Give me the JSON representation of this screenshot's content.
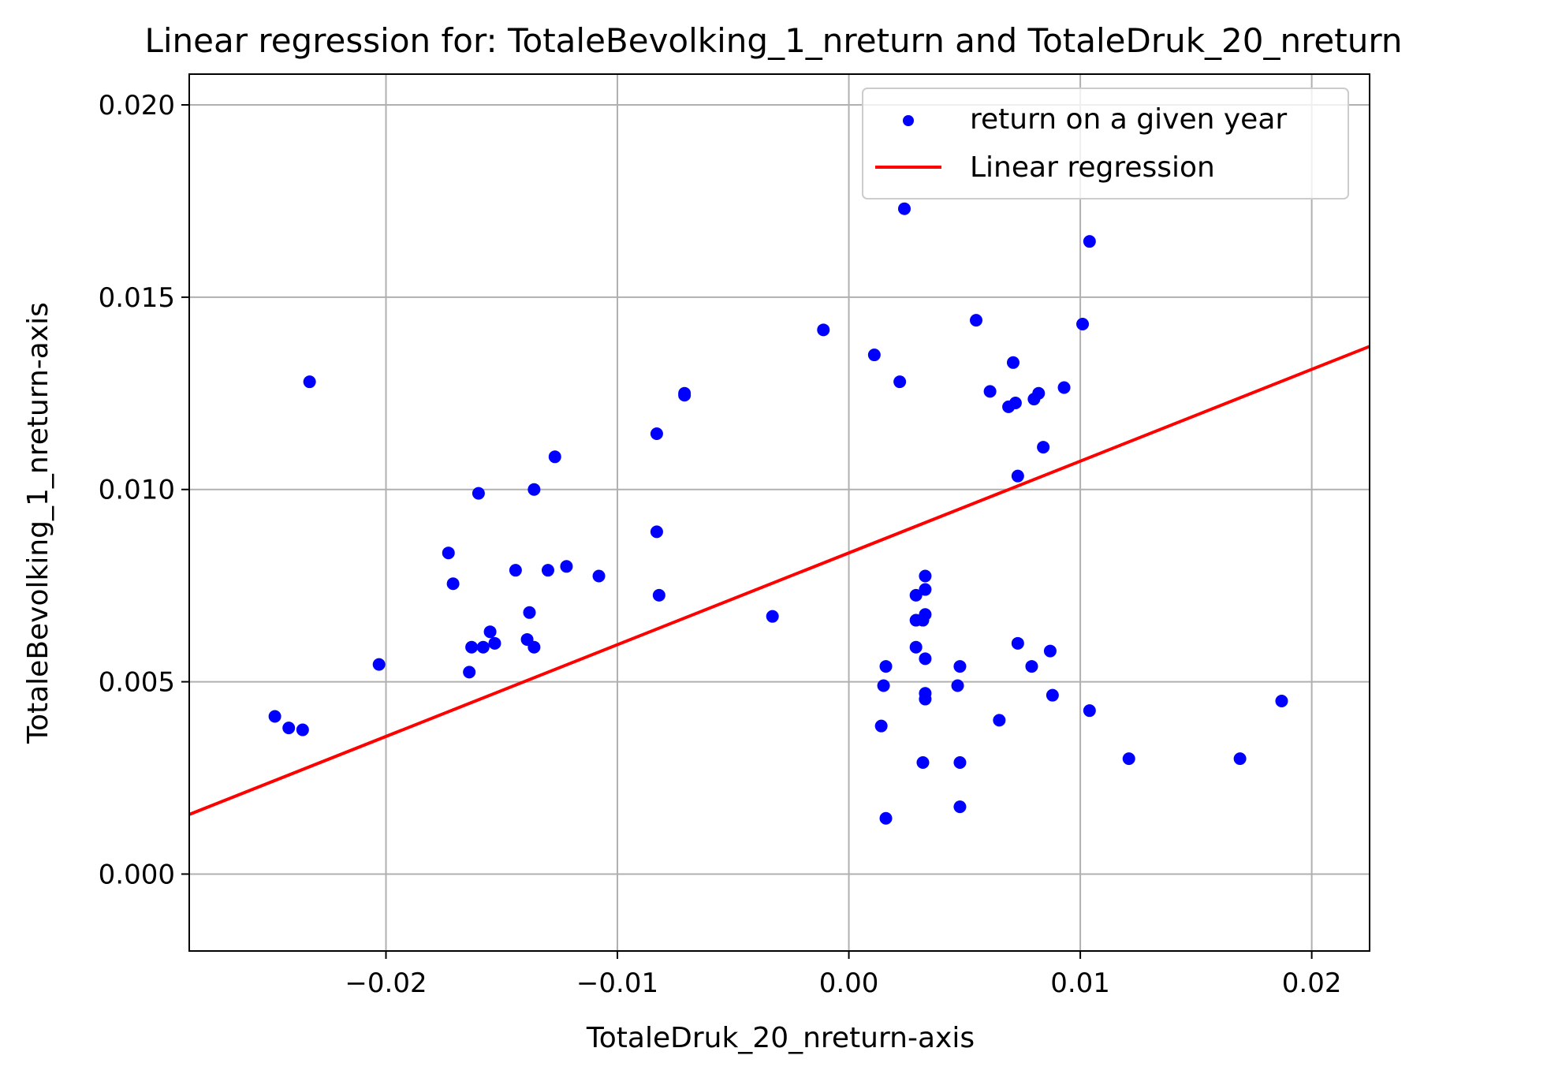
{
  "chart_data": {
    "type": "scatter",
    "title": "Linear regression for: TotaleBevolking_1_nreturn and TotaleDruk_20_nreturn",
    "xlabel": "TotaleDruk_20_nreturn-axis",
    "ylabel": "TotaleBevolking_1_nreturn-axis",
    "xlim": [
      -0.0285,
      0.0225
    ],
    "ylim": [
      -0.002,
      0.0208
    ],
    "x_ticks": [
      -0.02,
      -0.01,
      0.0,
      0.01,
      0.02
    ],
    "x_tick_labels": [
      "−0.02",
      "−0.01",
      "0.00",
      "0.01",
      "0.02"
    ],
    "y_ticks": [
      0.0,
      0.005,
      0.01,
      0.015,
      0.02
    ],
    "y_tick_labels": [
      "0.000",
      "0.005",
      "0.010",
      "0.015",
      "0.020"
    ],
    "grid": true,
    "legend": {
      "placement": "upper-right",
      "entries": [
        {
          "label": "return on a given year",
          "kind": "marker",
          "color": "#0000ff"
        },
        {
          "label": "Linear regression",
          "kind": "line",
          "color": "#ff0000"
        }
      ]
    },
    "series": [
      {
        "name": "return on a given year",
        "kind": "scatter",
        "color": "#0000ff",
        "points": [
          [
            -0.0248,
            0.0041
          ],
          [
            -0.0242,
            0.0038
          ],
          [
            -0.0236,
            0.00375
          ],
          [
            -0.0233,
            0.0128
          ],
          [
            -0.0203,
            0.00545
          ],
          [
            -0.0173,
            0.00835
          ],
          [
            -0.0171,
            0.00755
          ],
          [
            -0.0164,
            0.00525
          ],
          [
            -0.0163,
            0.0059
          ],
          [
            -0.016,
            0.0099
          ],
          [
            -0.0158,
            0.0059
          ],
          [
            -0.0155,
            0.0063
          ],
          [
            -0.0153,
            0.006
          ],
          [
            -0.0144,
            0.0079
          ],
          [
            -0.0139,
            0.0061
          ],
          [
            -0.0138,
            0.0068
          ],
          [
            -0.0136,
            0.0059
          ],
          [
            -0.0136,
            0.01
          ],
          [
            -0.013,
            0.0079
          ],
          [
            -0.0127,
            0.01085
          ],
          [
            -0.0122,
            0.008
          ],
          [
            -0.0108,
            0.00775
          ],
          [
            -0.0083,
            0.0089
          ],
          [
            -0.0083,
            0.01145
          ],
          [
            -0.0082,
            0.00725
          ],
          [
            -0.0071,
            0.0125
          ],
          [
            -0.0071,
            0.01245
          ],
          [
            -0.0033,
            0.0067
          ],
          [
            -0.0011,
            0.01415
          ],
          [
            0.0011,
            0.0135
          ],
          [
            0.0014,
            0.00385
          ],
          [
            0.0015,
            0.0049
          ],
          [
            0.0016,
            0.00145
          ],
          [
            0.0016,
            0.0054
          ],
          [
            0.0022,
            0.0128
          ],
          [
            0.0024,
            0.0173
          ],
          [
            0.0029,
            0.0066
          ],
          [
            0.0029,
            0.00725
          ],
          [
            0.0029,
            0.0059
          ],
          [
            0.0032,
            0.0029
          ],
          [
            0.0032,
            0.0066
          ],
          [
            0.0033,
            0.0056
          ],
          [
            0.0033,
            0.0074
          ],
          [
            0.0033,
            0.00675
          ],
          [
            0.0033,
            0.00775
          ],
          [
            0.0033,
            0.00455
          ],
          [
            0.0033,
            0.0047
          ],
          [
            0.0047,
            0.0049
          ],
          [
            0.0048,
            0.00175
          ],
          [
            0.0048,
            0.0029
          ],
          [
            0.0048,
            0.0054
          ],
          [
            0.0055,
            0.0144
          ],
          [
            0.0061,
            0.01255
          ],
          [
            0.0065,
            0.004
          ],
          [
            0.0069,
            0.01215
          ],
          [
            0.0071,
            0.0133
          ],
          [
            0.0072,
            0.01225
          ],
          [
            0.0073,
            0.01035
          ],
          [
            0.0073,
            0.006
          ],
          [
            0.0079,
            0.0054
          ],
          [
            0.008,
            0.01235
          ],
          [
            0.0082,
            0.0125
          ],
          [
            0.0084,
            0.0111
          ],
          [
            0.0087,
            0.0058
          ],
          [
            0.0088,
            0.00465
          ],
          [
            0.0093,
            0.01265
          ],
          [
            0.0101,
            0.0143
          ],
          [
            0.0104,
            0.00425
          ],
          [
            0.0104,
            0.01645
          ],
          [
            0.0121,
            0.003
          ],
          [
            0.0169,
            0.003
          ],
          [
            0.0187,
            0.0045
          ]
        ]
      },
      {
        "name": "Linear regression",
        "kind": "line",
        "color": "#ff0000",
        "points": [
          [
            -0.0285,
            0.00155
          ],
          [
            0.0225,
            0.01372
          ]
        ]
      }
    ]
  }
}
